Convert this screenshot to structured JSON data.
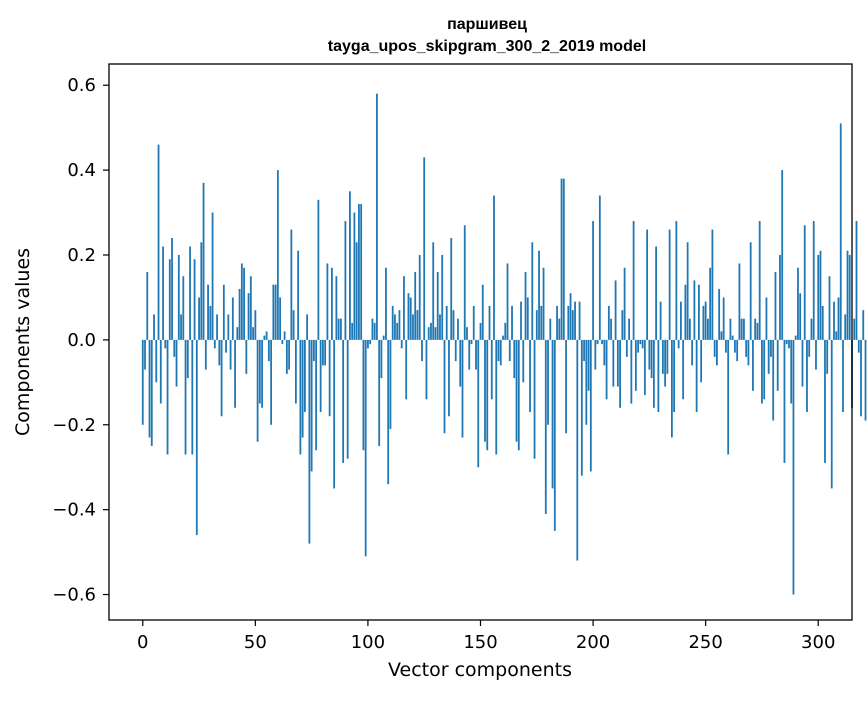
{
  "chart_data": {
    "type": "bar",
    "title_line1": "паршивец",
    "title_line2": "tayga_upos_skipgram_300_2_2019 model",
    "xlabel": "Vector components",
    "ylabel": "Components values",
    "xlim": [
      -15,
      315
    ],
    "ylim": [
      -0.66,
      0.65
    ],
    "xticks": [
      0,
      50,
      100,
      150,
      200,
      250,
      300
    ],
    "xtick_labels": [
      "0",
      "50",
      "100",
      "150",
      "200",
      "250",
      "300"
    ],
    "yticks": [
      -0.6,
      -0.4,
      -0.2,
      0.0,
      0.2,
      0.4,
      0.6
    ],
    "ytick_labels": [
      "−0.6",
      "−0.4",
      "−0.2",
      "0.0",
      "0.2",
      "0.4",
      "0.6"
    ],
    "bar_color": "#1f77b4",
    "grid": false,
    "values": [
      -0.2,
      -0.07,
      0.16,
      -0.23,
      -0.25,
      0.06,
      -0.1,
      0.46,
      -0.15,
      0.22,
      -0.02,
      -0.27,
      0.19,
      0.24,
      -0.04,
      -0.11,
      0.2,
      0.06,
      0.15,
      -0.27,
      -0.09,
      0.22,
      -0.27,
      0.19,
      -0.46,
      0.1,
      0.23,
      0.37,
      -0.07,
      0.13,
      0.08,
      0.3,
      -0.02,
      0.06,
      -0.06,
      -0.18,
      0.13,
      -0.03,
      0.06,
      -0.07,
      0.1,
      -0.16,
      0.03,
      0.12,
      0.18,
      0.17,
      -0.08,
      0.11,
      0.15,
      0.03,
      0.07,
      -0.24,
      -0.15,
      -0.16,
      0.01,
      0.02,
      -0.05,
      -0.2,
      0.13,
      0.13,
      0.4,
      0.1,
      -0.01,
      0.02,
      -0.08,
      -0.07,
      0.26,
      0.07,
      -0.15,
      0.21,
      -0.27,
      -0.23,
      -0.17,
      0.06,
      -0.48,
      -0.31,
      -0.05,
      -0.26,
      0.33,
      -0.17,
      -0.06,
      -0.06,
      0.18,
      -0.18,
      0.17,
      -0.35,
      0.15,
      0.05,
      0.05,
      -0.29,
      0.28,
      -0.28,
      0.35,
      0.04,
      0.3,
      0.23,
      0.32,
      0.32,
      -0.26,
      -0.51,
      -0.02,
      -0.01,
      0.05,
      0.04,
      0.58,
      -0.25,
      -0.09,
      0.01,
      0.17,
      -0.34,
      -0.21,
      0.08,
      0.06,
      0.04,
      0.07,
      -0.02,
      0.15,
      -0.14,
      0.11,
      0.1,
      0.06,
      0.16,
      0.07,
      0.2,
      -0.05,
      0.43,
      -0.14,
      0.03,
      0.04,
      0.23,
      0.03,
      0.16,
      0.06,
      0.2,
      -0.22,
      0.08,
      -0.18,
      0.24,
      0.07,
      -0.05,
      0.05,
      -0.11,
      -0.23,
      0.27,
      0.03,
      -0.07,
      -0.01,
      0.08,
      -0.07,
      -0.3,
      0.04,
      0.13,
      -0.24,
      -0.26,
      0.08,
      -0.14,
      0.34,
      -0.27,
      -0.05,
      -0.06,
      0.01,
      0.04,
      0.18,
      -0.05,
      0.08,
      -0.09,
      -0.24,
      -0.26,
      0.09,
      -0.1,
      0.16,
      0.1,
      -0.17,
      0.23,
      -0.28,
      0.07,
      0.21,
      0.08,
      0.17,
      -0.41,
      -0.2,
      0.05,
      -0.35,
      -0.45,
      0.08,
      0.05,
      0.38,
      0.38,
      -0.22,
      0.08,
      0.11,
      0.07,
      0.09,
      -0.52,
      0.09,
      -0.32,
      -0.05,
      -0.2,
      -0.12,
      -0.31,
      0.28,
      -0.07,
      -0.01,
      0.34,
      -0.01,
      -0.06,
      -0.14,
      0.08,
      0.05,
      -0.11,
      0.14,
      -0.11,
      -0.16,
      0.07,
      0.17,
      -0.04,
      0.05,
      -0.15,
      0.28,
      -0.12,
      -0.03,
      -0.01,
      -0.02,
      -0.13,
      0.26,
      -0.07,
      -0.09,
      -0.16,
      0.22,
      -0.17,
      0.09,
      -0.08,
      -0.11,
      -0.08,
      0.26,
      -0.23,
      -0.17,
      0.28,
      -0.02,
      0.09,
      -0.14,
      0.13,
      0.23,
      0.05,
      -0.06,
      0.14,
      -0.17,
      0.13,
      -0.1,
      0.08,
      0.09,
      0.05,
      0.17,
      0.26,
      -0.04,
      -0.06,
      0.12,
      0.02,
      0.1,
      -0.03,
      -0.27,
      0.05,
      0.01,
      -0.03,
      -0.05,
      0.18,
      0.05,
      0.05,
      -0.04,
      -0.06,
      0.23,
      -0.12,
      0.05,
      0.04,
      0.28,
      -0.15,
      -0.14,
      0.1,
      -0.08,
      -0.04,
      -0.19,
      0.16,
      -0.12,
      0.2,
      0.4,
      -0.29,
      -0.01,
      -0.02,
      -0.15,
      -0.6,
      0.01,
      0.17,
      0.11,
      -0.11,
      0.27,
      -0.17,
      -0.04,
      0.05,
      0.28,
      -0.07,
      0.2,
      0.21,
      0.08,
      -0.29,
      -0.08,
      0.15,
      -0.35,
      0.09,
      0.02,
      0.1,
      0.51,
      -0.17,
      0.06,
      0.21,
      0.2,
      -0.16,
      0.05,
      0.28,
      -0.03,
      -0.18,
      0.07,
      -0.19,
      0.0
    ]
  }
}
